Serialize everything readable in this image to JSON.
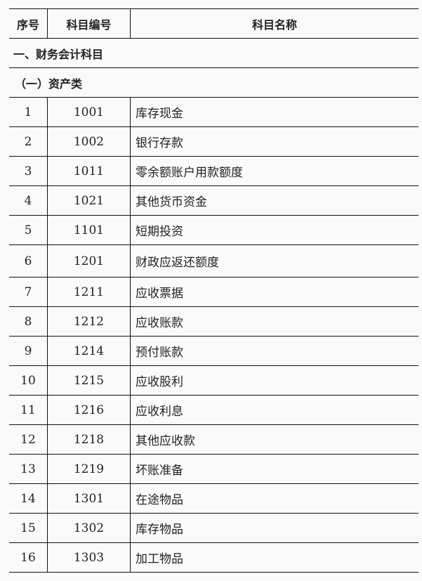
{
  "headers": [
    "序号",
    "科目编号",
    "科目名称"
  ],
  "section": "一、财务会计科目",
  "subsection": "（一）资产类",
  "rows": [
    {
      "no": "1",
      "code": "1001",
      "name": "库存现金"
    },
    {
      "no": "2",
      "code": "1002",
      "name": "银行存款"
    },
    {
      "no": "3",
      "code": "1011",
      "name": "零余额账户用款额度"
    },
    {
      "no": "4",
      "code": "1021",
      "name": "其他货币资金"
    },
    {
      "no": "5",
      "code": "1101",
      "name": "短期投资"
    },
    {
      "no": "6",
      "code": "1201",
      "name": "财政应返还额度"
    },
    {
      "no": "7",
      "code": "1211",
      "name": "应收票据"
    },
    {
      "no": "8",
      "code": "1212",
      "name": "应收账款"
    },
    {
      "no": "9",
      "code": "1214",
      "name": "预付账款"
    },
    {
      "no": "10",
      "code": "1215",
      "name": "应收股利"
    },
    {
      "no": "11",
      "code": "1216",
      "name": "应收利息"
    },
    {
      "no": "12",
      "code": "1218",
      "name": "其他应收款"
    },
    {
      "no": "13",
      "code": "1219",
      "name": "坏账准备"
    },
    {
      "no": "14",
      "code": "1301",
      "name": "在途物品"
    },
    {
      "no": "15",
      "code": "1302",
      "name": "库存物品"
    },
    {
      "no": "16",
      "code": "1303",
      "name": "加工物品"
    }
  ]
}
